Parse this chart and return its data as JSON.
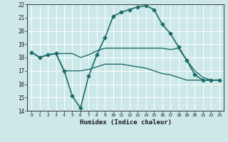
{
  "title": "",
  "xlabel": "Humidex (Indice chaleur)",
  "xlim": [
    -0.5,
    23.5
  ],
  "ylim": [
    14,
    22
  ],
  "yticks": [
    14,
    15,
    16,
    17,
    18,
    19,
    20,
    21,
    22
  ],
  "xticks": [
    0,
    1,
    2,
    3,
    4,
    5,
    6,
    7,
    8,
    9,
    10,
    11,
    12,
    13,
    14,
    15,
    16,
    17,
    18,
    19,
    20,
    21,
    22,
    23
  ],
  "bg_color": "#cce8e8",
  "line_color": "#1e6b6b",
  "grid_color": "#b0d8d8",
  "series": [
    {
      "name": "main_line",
      "x": [
        0,
        1,
        2,
        3,
        4,
        5,
        6,
        7,
        8,
        9,
        10,
        11,
        12,
        13,
        14,
        15,
        16,
        17,
        18,
        19,
        20,
        21,
        22,
        23
      ],
      "y": [
        18.4,
        18.0,
        18.2,
        18.3,
        17.0,
        15.1,
        14.2,
        16.6,
        18.2,
        19.5,
        21.1,
        21.4,
        21.6,
        21.8,
        21.9,
        21.6,
        20.5,
        19.8,
        18.8,
        17.8,
        16.7,
        16.3,
        16.3,
        16.3
      ],
      "marker": "D",
      "markersize": 2.5,
      "linewidth": 1.2
    },
    {
      "name": "upper_flat",
      "x": [
        0,
        1,
        2,
        3,
        4,
        5,
        6,
        7,
        8,
        9,
        10,
        11,
        12,
        13,
        14,
        15,
        16,
        17,
        18,
        19,
        20,
        21,
        22,
        23
      ],
      "y": [
        18.4,
        18.0,
        18.2,
        18.3,
        18.3,
        18.3,
        18.0,
        18.2,
        18.5,
        18.7,
        18.7,
        18.7,
        18.7,
        18.7,
        18.7,
        18.7,
        18.7,
        18.6,
        18.7,
        17.8,
        17.0,
        16.5,
        16.3,
        16.3
      ],
      "marker": null,
      "markersize": 0,
      "linewidth": 1.0
    },
    {
      "name": "lower_flat",
      "x": [
        0,
        1,
        2,
        3,
        4,
        5,
        6,
        7,
        8,
        9,
        10,
        11,
        12,
        13,
        14,
        15,
        16,
        17,
        18,
        19,
        20,
        21,
        22,
        23
      ],
      "y": [
        18.4,
        18.0,
        18.2,
        18.3,
        17.0,
        17.0,
        17.0,
        17.1,
        17.3,
        17.5,
        17.5,
        17.5,
        17.4,
        17.3,
        17.2,
        17.0,
        16.8,
        16.7,
        16.5,
        16.3,
        16.3,
        16.3,
        16.3,
        16.3
      ],
      "marker": null,
      "markersize": 0,
      "linewidth": 1.0
    }
  ]
}
